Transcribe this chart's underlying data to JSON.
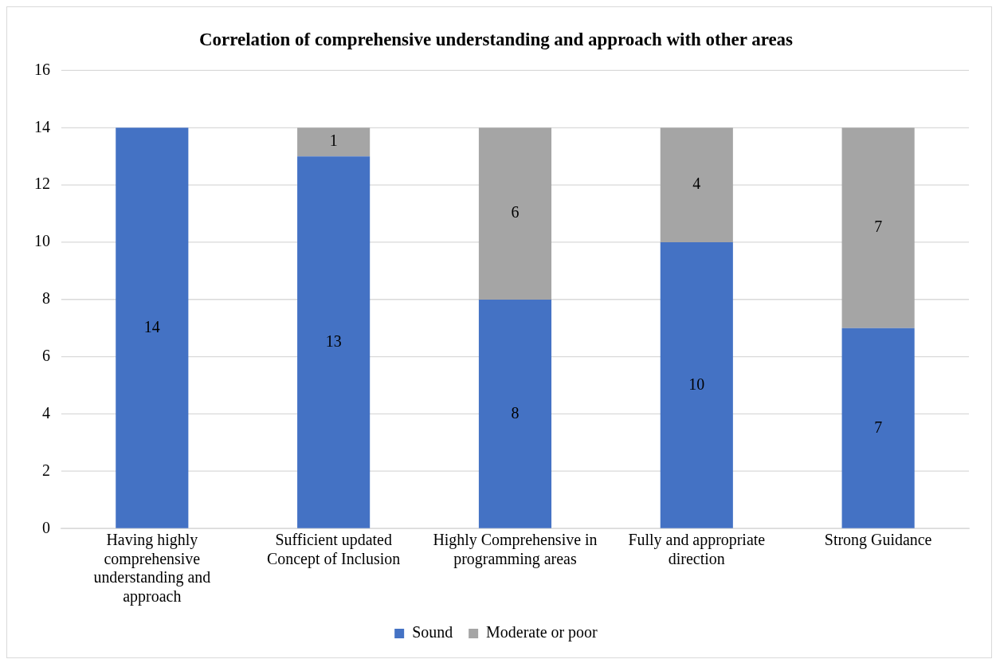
{
  "chart_data": {
    "type": "bar",
    "title": "Correlation of comprehensive understanding and approach with other areas",
    "categories": [
      "Having highly comprehensive understanding and approach",
      "Sufficient updated Concept of Inclusion",
      "Highly Comprehensive in programming areas",
      "Fully and appropriate direction",
      "Strong Guidance"
    ],
    "stacked": true,
    "series": [
      {
        "name": "Sound",
        "color": "#4472c4",
        "values": [
          14,
          13,
          8,
          10,
          7
        ],
        "value_labels": [
          "14",
          "13",
          "8",
          "10",
          "7"
        ]
      },
      {
        "name": "Moderate or poor",
        "color": "#a5a5a5",
        "values": [
          0,
          1,
          6,
          4,
          7
        ],
        "value_labels": [
          null,
          "1",
          "6",
          "4",
          "7"
        ]
      }
    ],
    "ylim": [
      0,
      16
    ],
    "yticks": [
      0,
      2,
      4,
      6,
      8,
      10,
      12,
      14,
      16
    ],
    "grid": "y",
    "legend": "bottom"
  }
}
